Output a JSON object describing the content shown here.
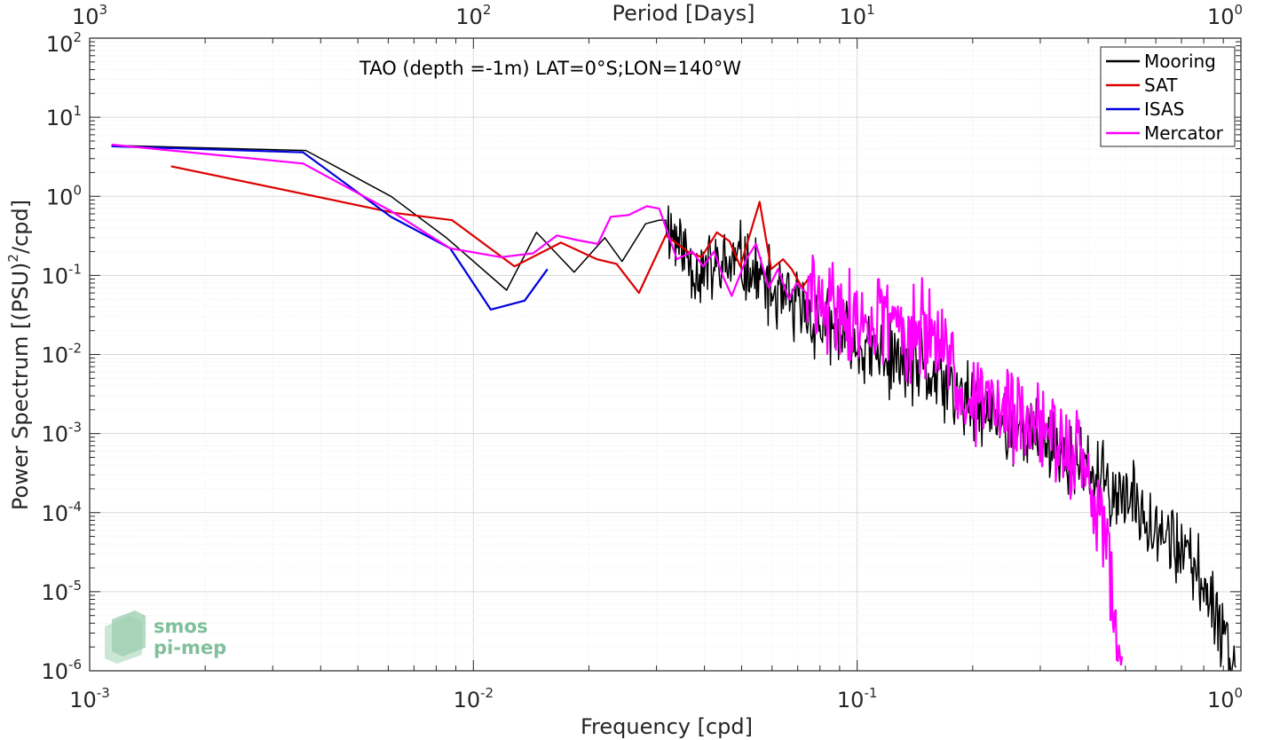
{
  "chart_data": {
    "type": "line",
    "title": "",
    "annotation": "TAO (depth =-1m) LAT=0°S;LON=140°W",
    "xlabel": "Frequency [cpd]",
    "ylabel": "Power Spectrum [(PSU)",
    "ylabel_sup": "2",
    "ylabel_tail": "/cpd]",
    "top_xlabel": "Period [Days]",
    "xscale": "log",
    "yscale": "log",
    "xlim": [
      0.001,
      1
    ],
    "ylim": [
      1e-06,
      100
    ],
    "grid": true,
    "legend_position": "top-right",
    "xticks": [
      {
        "value": 0.001,
        "base": "10",
        "exp": "-3"
      },
      {
        "value": 0.01,
        "base": "10",
        "exp": "-2"
      },
      {
        "value": 0.1,
        "base": "10",
        "exp": "-1"
      },
      {
        "value": 1,
        "base": "10",
        "exp": "0"
      }
    ],
    "yticks": [
      {
        "value": 1e-06,
        "base": "10",
        "exp": "-6"
      },
      {
        "value": 1e-05,
        "base": "10",
        "exp": "-5"
      },
      {
        "value": 0.0001,
        "base": "10",
        "exp": "-4"
      },
      {
        "value": 0.001,
        "base": "10",
        "exp": "-3"
      },
      {
        "value": 0.01,
        "base": "10",
        "exp": "-2"
      },
      {
        "value": 0.1,
        "base": "10",
        "exp": "-1"
      },
      {
        "value": 1,
        "base": "10",
        "exp": "0"
      },
      {
        "value": 10,
        "base": "10",
        "exp": "1"
      },
      {
        "value": 100,
        "base": "10",
        "exp": "2"
      }
    ],
    "top_ticks": [
      {
        "freq": 0.001,
        "base": "10",
        "exp": "3"
      },
      {
        "freq": 0.01,
        "base": "10",
        "exp": "2"
      },
      {
        "freq": 0.1,
        "base": "10",
        "exp": "1"
      },
      {
        "freq": 1,
        "base": "10",
        "exp": "0"
      }
    ],
    "series": [
      {
        "name": "Mooring",
        "color": "#000000",
        "width": 1.5,
        "points": [
          [
            0.00114,
            4.4
          ],
          [
            0.00366,
            3.8
          ],
          [
            0.0061,
            1.0
          ],
          [
            0.0085,
            0.3
          ],
          [
            0.0122,
            0.065
          ],
          [
            0.0146,
            0.35
          ],
          [
            0.0183,
            0.11
          ],
          [
            0.022,
            0.3
          ],
          [
            0.0244,
            0.15
          ],
          [
            0.0281,
            0.45
          ],
          [
            0.0305,
            0.5
          ],
          [
            0.0317,
            0.5
          ]
        ],
        "noise": {
          "start": 0.0317,
          "end": 0.97,
          "n": 640,
          "seed": 11,
          "slope": 2.35,
          "amp": 0.6,
          "knots": [
            [
              0.0317,
              0.5
            ],
            [
              0.038,
              0.12
            ],
            [
              0.044,
              0.12
            ],
            [
              0.05,
              0.15
            ],
            [
              0.06,
              0.06
            ],
            [
              0.075,
              0.03
            ],
            [
              0.1,
              0.012
            ],
            [
              0.15,
              0.006
            ],
            [
              0.2,
              0.0022
            ],
            [
              0.3,
              0.00085
            ],
            [
              0.4,
              0.00032
            ],
            [
              0.5,
              0.00015
            ],
            [
              0.6,
              8e-05
            ],
            [
              0.7,
              3.2e-05
            ],
            [
              0.8,
              1.3e-05
            ],
            [
              0.9,
              3.5e-06
            ],
            [
              0.97,
              1.1e-06
            ]
          ]
        }
      },
      {
        "name": "SAT",
        "color": "#dd0000",
        "width": 2.2,
        "points": [
          [
            0.00163,
            2.4
          ],
          [
            0.0062,
            0.62
          ],
          [
            0.0088,
            0.5
          ],
          [
            0.0128,
            0.13
          ],
          [
            0.0169,
            0.26
          ],
          [
            0.021,
            0.16
          ],
          [
            0.0236,
            0.14
          ],
          [
            0.027,
            0.06
          ],
          [
            0.0317,
            0.32
          ],
          [
            0.0362,
            0.2
          ],
          [
            0.0393,
            0.17
          ],
          [
            0.0431,
            0.35
          ],
          [
            0.0465,
            0.27
          ],
          [
            0.0496,
            0.13
          ],
          [
            0.0557,
            0.85
          ],
          [
            0.0597,
            0.12
          ],
          [
            0.0641,
            0.16
          ],
          [
            0.0675,
            0.12
          ],
          [
            0.0719,
            0.07
          ],
          [
            0.0745,
            0.09
          ]
        ]
      },
      {
        "name": "ISAS",
        "color": "#0000dd",
        "width": 2.2,
        "points": [
          [
            0.00114,
            4.3
          ],
          [
            0.0036,
            3.6
          ],
          [
            0.0061,
            0.55
          ],
          [
            0.0087,
            0.22
          ],
          [
            0.0111,
            0.037
          ],
          [
            0.0136,
            0.048
          ],
          [
            0.0156,
            0.12
          ]
        ]
      },
      {
        "name": "Mercator",
        "color": "#ff00ff",
        "width": 2.2,
        "points": [
          [
            0.00114,
            4.5
          ],
          [
            0.0036,
            2.6
          ],
          [
            0.0061,
            0.65
          ],
          [
            0.0087,
            0.22
          ],
          [
            0.0118,
            0.17
          ],
          [
            0.0143,
            0.19
          ],
          [
            0.0165,
            0.32
          ],
          [
            0.0186,
            0.28
          ],
          [
            0.0211,
            0.25
          ],
          [
            0.0228,
            0.55
          ],
          [
            0.0254,
            0.58
          ],
          [
            0.0283,
            0.75
          ],
          [
            0.0305,
            0.7
          ],
          [
            0.0339,
            0.16
          ],
          [
            0.0372,
            0.2
          ],
          [
            0.0397,
            0.13
          ],
          [
            0.0424,
            0.2
          ],
          [
            0.0446,
            0.1
          ],
          [
            0.0471,
            0.055
          ],
          [
            0.0514,
            0.16
          ],
          [
            0.0545,
            0.25
          ],
          [
            0.0588,
            0.07
          ],
          [
            0.0622,
            0.12
          ],
          [
            0.0664,
            0.05
          ],
          [
            0.0695,
            0.08
          ],
          [
            0.0737,
            0.06
          ]
        ],
        "noise": {
          "start": 0.0737,
          "end": 0.49,
          "n": 300,
          "seed": 29,
          "slope": 2.5,
          "amp": 0.75,
          "knots": [
            [
              0.0737,
              0.06
            ],
            [
              0.09,
              0.035
            ],
            [
              0.1,
              0.025
            ],
            [
              0.12,
              0.025
            ],
            [
              0.15,
              0.02
            ],
            [
              0.18,
              0.005
            ],
            [
              0.22,
              0.0025
            ],
            [
              0.28,
              0.0012
            ],
            [
              0.33,
              0.00085
            ],
            [
              0.38,
              0.00045
            ],
            [
              0.42,
              0.00012
            ],
            [
              0.45,
              3.5e-05
            ],
            [
              0.47,
              4e-06
            ],
            [
              0.49,
              1.1e-06
            ]
          ]
        }
      }
    ]
  },
  "logo": {
    "line1": "smos",
    "line2": "pi-mep"
  }
}
